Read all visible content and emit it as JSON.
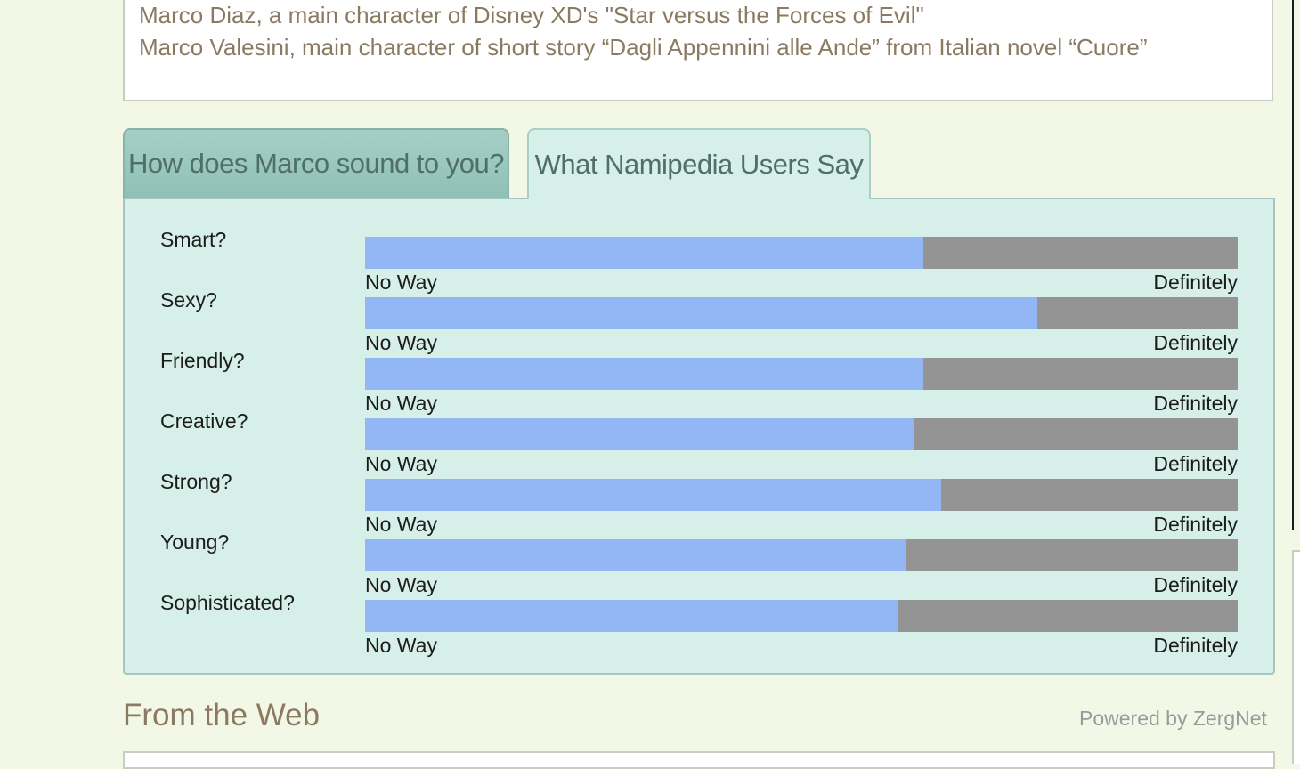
{
  "famous": {
    "lines": [
      "Marco Diaz, a main character of Disney XD's \"Star versus the Forces of Evil\"",
      "Marco Valesini, main character of short story “Dagli Appennini alle Ande” from Italian novel “Cuore”"
    ]
  },
  "tabs": {
    "sound": "How does Marco sound to you?",
    "users": "What Namipedia Users Say"
  },
  "ratings": {
    "scale_low": "No Way",
    "scale_high": "Definitely",
    "traits": [
      {
        "label": "Smart?",
        "value": 0.64
      },
      {
        "label": "Sexy?",
        "value": 0.77
      },
      {
        "label": "Friendly?",
        "value": 0.64
      },
      {
        "label": "Creative?",
        "value": 0.63
      },
      {
        "label": "Strong?",
        "value": 0.66
      },
      {
        "label": "Young?",
        "value": 0.62
      },
      {
        "label": "Sophisticated?",
        "value": 0.61
      }
    ]
  },
  "web": {
    "heading": "From the Web",
    "powered_by": "Powered by ZergNet"
  },
  "colors": {
    "bar_fill": "#93b7f5",
    "bar_track": "#949494",
    "panel_bg": "#d6efe8",
    "page_bg": "#f2f8e5"
  }
}
